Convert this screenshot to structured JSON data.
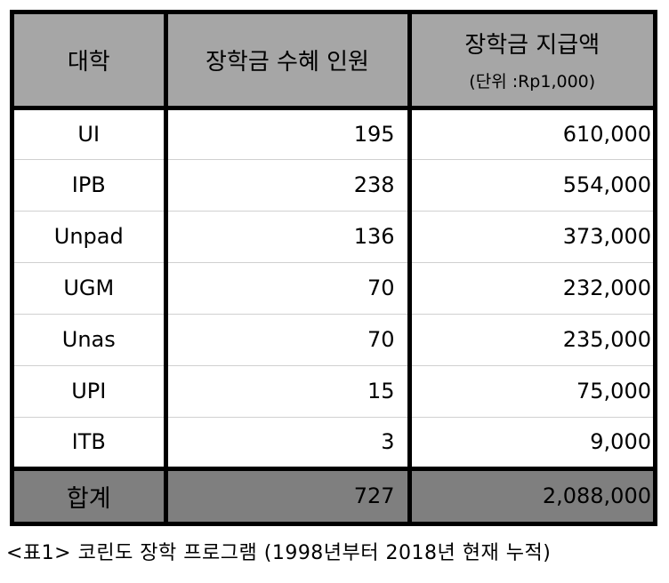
{
  "table": {
    "headers": {
      "university": "대학",
      "recipients": "장학금 수혜 인원",
      "amount": "장학금 지급액",
      "amount_unit": "(단위 :Rp1,000)"
    },
    "rows": [
      {
        "university": "UI",
        "recipients": "195",
        "amount": "610,000"
      },
      {
        "university": "IPB",
        "recipients": "238",
        "amount": "554,000"
      },
      {
        "university": "Unpad",
        "recipients": "136",
        "amount": "373,000"
      },
      {
        "university": "UGM",
        "recipients": "70",
        "amount": "232,000"
      },
      {
        "university": "Unas",
        "recipients": "70",
        "amount": "235,000"
      },
      {
        "university": "UPI",
        "recipients": "15",
        "amount": "75,000"
      },
      {
        "university": "ITB",
        "recipients": "3",
        "amount": "9,000"
      }
    ],
    "total": {
      "label": "합계",
      "recipients": "727",
      "amount": "2,088,000"
    }
  },
  "caption": "<표1> 코린도 장학 프로그램 (1998년부터 2018년 현재 누적)",
  "colors": {
    "header_bg": "#a6a6a6",
    "total_bg": "#7f7f7f",
    "border": "#000000",
    "row_divider": "#d0d0d0"
  }
}
